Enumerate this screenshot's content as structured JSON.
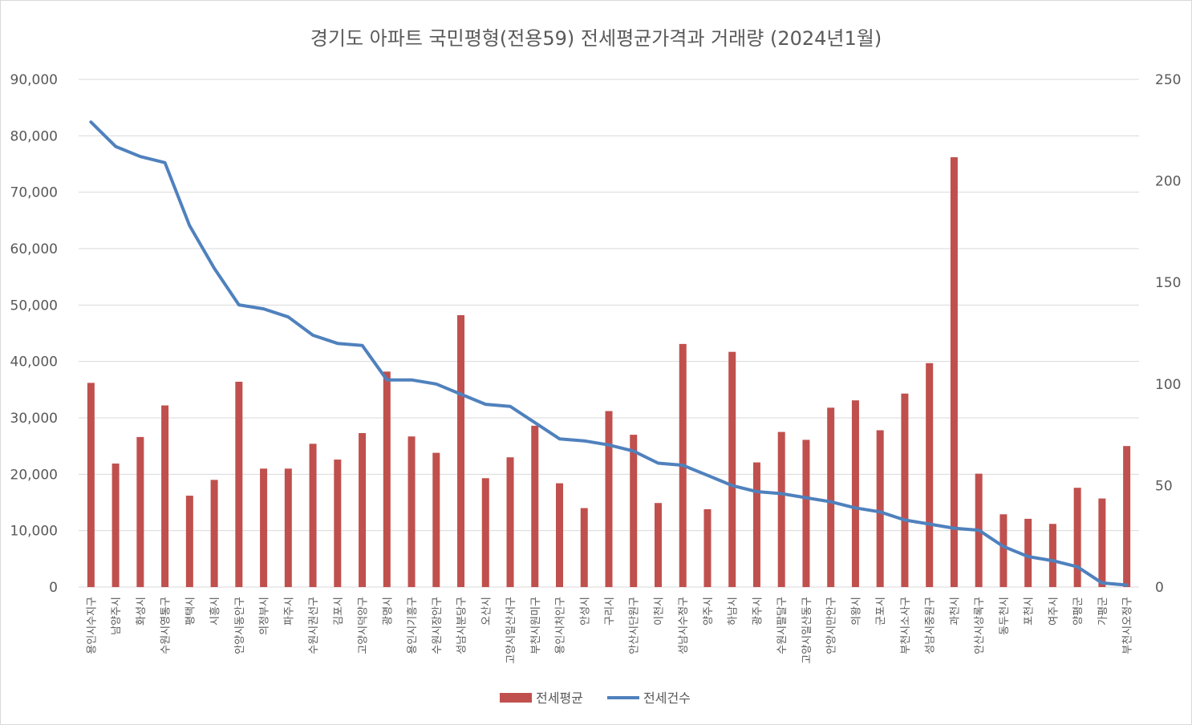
{
  "chart_data": {
    "type": "bar+line",
    "title": "경기도 아파트 국민평형(전용59) 전세평균가격과 거래량 (2024년1월)",
    "categories": [
      "용인시수지구",
      "남양주시",
      "화성시",
      "수원시영통구",
      "평택시",
      "시흥시",
      "안양시동안구",
      "의정부시",
      "파주시",
      "수원시권선구",
      "김포시",
      "고양시덕양구",
      "광명시",
      "용인시기흥구",
      "수원시장안구",
      "성남시분당구",
      "오산시",
      "고양시일산서구",
      "부천시원미구",
      "용인시처인구",
      "안성시",
      "구리시",
      "안산시단원구",
      "이천시",
      "성남시수정구",
      "양주시",
      "하남시",
      "광주시",
      "수원시팔달구",
      "고양시일산동구",
      "안양시만안구",
      "의왕시",
      "군포시",
      "부천시소사구",
      "성남시중원구",
      "과천시",
      "안산시상록구",
      "동두천시",
      "포천시",
      "여주시",
      "양평군",
      "가평군",
      "부천시오정구"
    ],
    "series": [
      {
        "name": "전세평균",
        "type": "bar",
        "axis": "left",
        "color": "#c0504d",
        "values": [
          36200,
          21900,
          26600,
          32200,
          16200,
          19000,
          36400,
          21000,
          21000,
          25400,
          22600,
          27300,
          38200,
          26700,
          23800,
          48200,
          19300,
          23000,
          28600,
          18400,
          14000,
          31200,
          27000,
          14900,
          43100,
          13800,
          41700,
          22100,
          27500,
          26100,
          31800,
          33100,
          27800,
          34300,
          39700,
          76200,
          20100,
          12900,
          12100,
          11200,
          17600,
          15700,
          25000
        ]
      },
      {
        "name": "전세건수",
        "type": "line",
        "axis": "right",
        "color": "#4f81bd",
        "values": [
          229,
          217,
          212,
          209,
          178,
          157,
          139,
          137,
          133,
          124,
          120,
          119,
          102,
          102,
          100,
          95,
          90,
          89,
          81,
          73,
          72,
          70,
          67,
          61,
          60,
          55,
          50,
          47,
          46,
          44,
          42,
          39,
          37,
          33,
          31,
          29,
          28,
          20,
          15,
          13,
          10,
          2,
          1
        ]
      }
    ],
    "y_left": {
      "min": 0,
      "max": 90000,
      "ticks": [
        0,
        10000,
        20000,
        30000,
        40000,
        50000,
        60000,
        70000,
        80000,
        90000
      ],
      "tick_labels": [
        "0",
        "10,000",
        "20,000",
        "30,000",
        "40,000",
        "50,000",
        "60,000",
        "70,000",
        "80,000",
        "90,000"
      ]
    },
    "y_right": {
      "min": 0,
      "max": 250,
      "ticks": [
        0,
        50,
        100,
        150,
        200,
        250
      ],
      "tick_labels": [
        "0",
        "50",
        "100",
        "150",
        "200",
        "250"
      ]
    },
    "legend": {
      "position": "bottom",
      "items": [
        "전세평균",
        "전세건수"
      ]
    },
    "grid": true
  }
}
